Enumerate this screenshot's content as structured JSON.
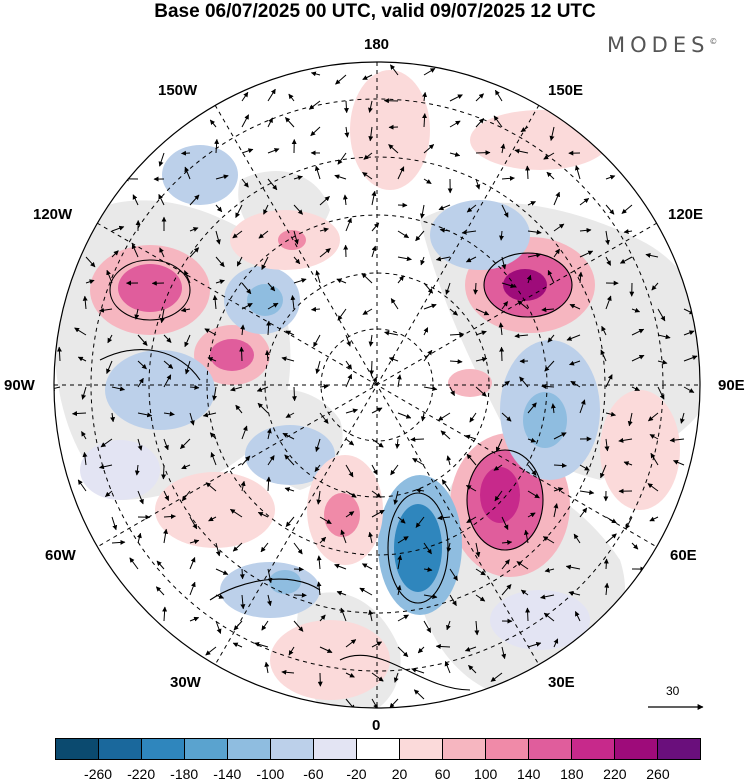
{
  "title": "Base 06/07/2025 00 UTC, valid 09/07/2025 12 UTC",
  "brand": "MODES",
  "brand_mark": "©",
  "longitude_labels": {
    "lon_180": "180",
    "lon_150e": "150E",
    "lon_120e": "120E",
    "lon_90e": "90E",
    "lon_60e": "60E",
    "lon_30e": "30E",
    "lon_0": "0",
    "lon_30w": "30W",
    "lon_60w": "60W",
    "lon_90w": "90W",
    "lon_120w": "120W",
    "lon_150w": "150W"
  },
  "vector_reference": "30",
  "colorbar": {
    "colors": [
      "#0b4a6f",
      "#1a689c",
      "#2f86bd",
      "#5aa3cf",
      "#8fbde0",
      "#bcd0ea",
      "#e3e4f3",
      "#ffffff",
      "#fbdada",
      "#f6b6c0",
      "#f08aa8",
      "#e05d9c",
      "#c7298b",
      "#9e0b7a",
      "#6a0f7c"
    ],
    "tick_labels": [
      "-260",
      "-220",
      "-180",
      "-140",
      "-100",
      "-60",
      "-20",
      "20",
      "60",
      "100",
      "140",
      "180",
      "220",
      "260"
    ]
  }
}
